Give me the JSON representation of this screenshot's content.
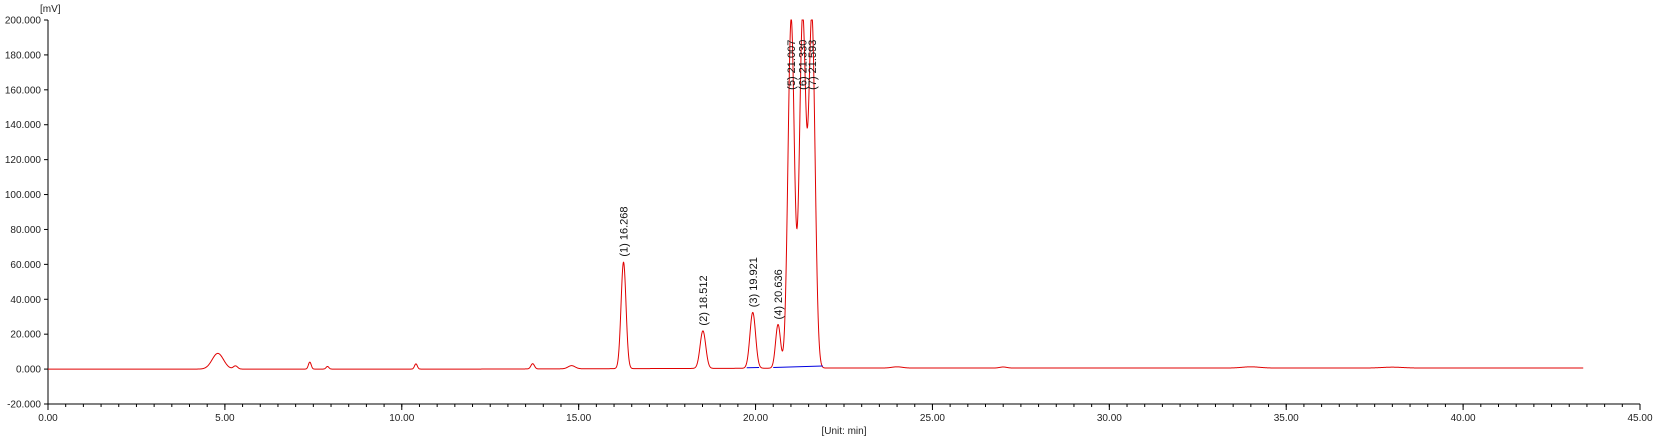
{
  "chart_data": {
    "type": "line",
    "xlabel": "[Unit: min]",
    "ylabel": "[mV]",
    "xlim": [
      0,
      45
    ],
    "ylim": [
      -20000,
      200000
    ],
    "x_ticks": [
      0,
      5,
      10,
      15,
      20,
      25,
      30,
      35,
      40,
      45
    ],
    "x_tick_labels": [
      "0.00",
      "5.00",
      "10.00",
      "15.00",
      "20.00",
      "25.00",
      "30.00",
      "35.00",
      "40.00",
      "45.00"
    ],
    "y_ticks": [
      -20000,
      0,
      20000,
      40000,
      60000,
      80000,
      100000,
      120000,
      140000,
      160000,
      180000,
      200000
    ],
    "y_tick_labels": [
      "-20.000",
      "0.000",
      "20.000",
      "40.000",
      "60.000",
      "80.000",
      "100.000",
      "120.000",
      "140.000",
      "160.000",
      "180.000",
      "200.000"
    ],
    "x_minor_step": 0.5,
    "grid": false,
    "colors": {
      "signal": "#e00000",
      "baseline": "#0000e0",
      "axis": "#000000"
    },
    "baseline_level": 0,
    "run_end_min": 43.4,
    "peaks": [
      {
        "label": "(1) 16.268",
        "rt": 16.268,
        "height": 61000,
        "width": 0.07
      },
      {
        "label": "(2) 18.512",
        "rt": 18.512,
        "height": 21500,
        "width": 0.08
      },
      {
        "label": "(3) 19.921",
        "rt": 19.921,
        "height": 32000,
        "width": 0.08
      },
      {
        "label": "(4) 20.636",
        "rt": 20.636,
        "height": 25000,
        "width": 0.07
      },
      {
        "label": "(5) 21.007",
        "rt": 21.007,
        "height": 200000,
        "width": 0.09
      },
      {
        "label": "(6) 21.330",
        "rt": 21.33,
        "height": 200000,
        "width": 0.09
      },
      {
        "label": "(7) 21.593",
        "rt": 21.593,
        "height": 200000,
        "width": 0.09
      }
    ],
    "minor_bumps": [
      {
        "rt": 4.8,
        "height": 9000,
        "width": 0.16
      },
      {
        "rt": 5.3,
        "height": 1800,
        "width": 0.06
      },
      {
        "rt": 7.4,
        "height": 4000,
        "width": 0.04
      },
      {
        "rt": 7.9,
        "height": 1500,
        "width": 0.04
      },
      {
        "rt": 10.4,
        "height": 3000,
        "width": 0.04
      },
      {
        "rt": 13.7,
        "height": 3000,
        "width": 0.05
      },
      {
        "rt": 14.8,
        "height": 1800,
        "width": 0.1
      },
      {
        "rt": 24.0,
        "height": 700,
        "width": 0.15
      },
      {
        "rt": 27.0,
        "height": 600,
        "width": 0.1
      },
      {
        "rt": 34.0,
        "height": 700,
        "width": 0.25
      },
      {
        "rt": 38.0,
        "height": 500,
        "width": 0.3
      }
    ]
  }
}
